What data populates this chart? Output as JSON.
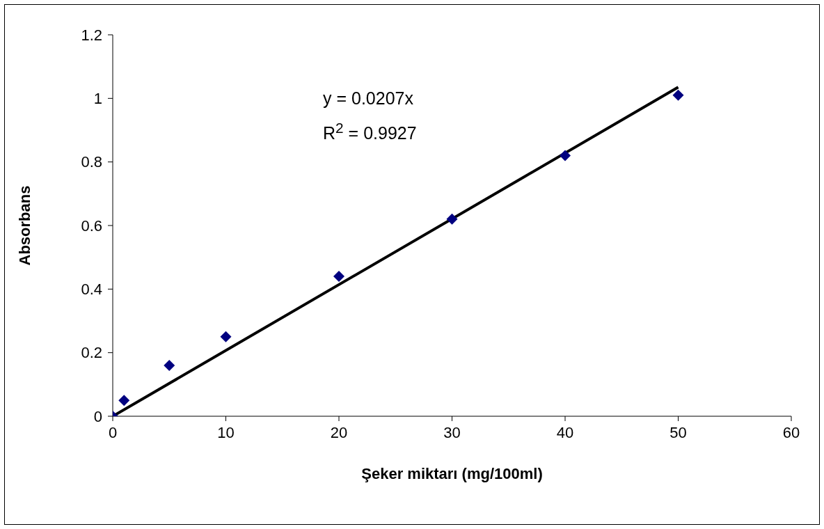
{
  "chart_data": {
    "type": "scatter",
    "xlabel": "Şeker miktarı (mg/100ml)",
    "ylabel": "Absorbans",
    "annotations": [
      "y = 0.0207x",
      "R$^{2}$ = 0.9927"
    ],
    "x": [
      0,
      1,
      5,
      10,
      20,
      30,
      40,
      50
    ],
    "series": [
      {
        "color": "#000080",
        "values": [
          0,
          0.05,
          0.16,
          0.25,
          0.44,
          0.62,
          0.82,
          1.01
        ],
        "marker": "diamond"
      },
      {
        "type": "line",
        "color": "#000000",
        "x": [
          0,
          50
        ],
        "values": [
          0,
          1.035
        ],
        "marker": "none",
        "line_style": "solid"
      }
    ],
    "xlim": [
      0,
      60
    ],
    "xticks": [
      0,
      10,
      20,
      30,
      40,
      50,
      60
    ],
    "ylim": [
      0,
      1.2
    ],
    "yticks": [
      0,
      0.2,
      0.4,
      0.6,
      0.8,
      1,
      1.2
    ],
    "grid": false
  }
}
